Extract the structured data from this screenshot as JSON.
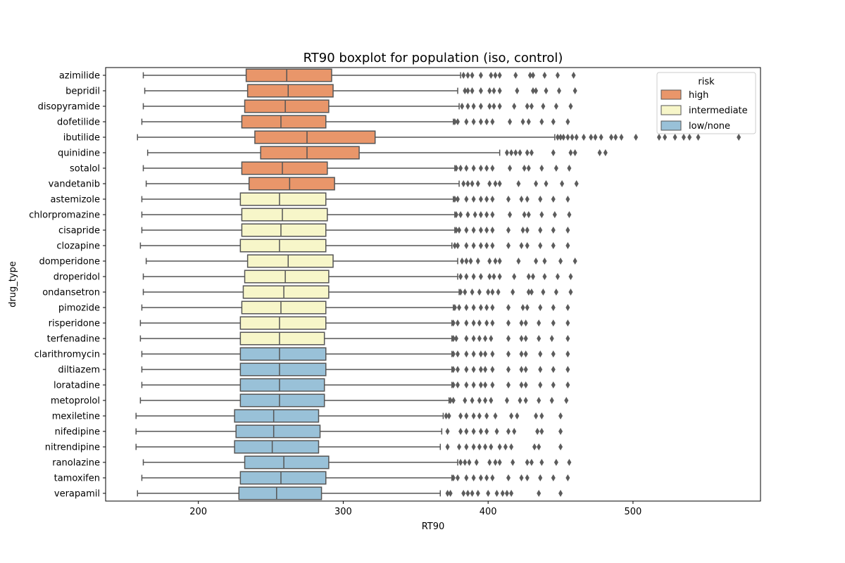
{
  "chart_data": {
    "type": "boxplot",
    "orientation": "horizontal",
    "title": "RT90 boxplot for population (iso, control)",
    "xlabel": "RT90",
    "ylabel": "drug_type",
    "xlim": [
      136,
      588
    ],
    "xticks": [
      200,
      300,
      400,
      500
    ],
    "grid": false,
    "legend": {
      "title": "risk",
      "placement": "top-right",
      "items": [
        {
          "label": "high",
          "color": "#e9966a"
        },
        {
          "label": "intermediate",
          "color": "#f7f6c9"
        },
        {
          "label": "low/none",
          "color": "#99c1d8"
        }
      ]
    },
    "box_edge_color": "#555555",
    "flier_color": "#5c5c5c",
    "boxes": [
      {
        "category": "azimilide",
        "risk": "high",
        "whisker_low": 162,
        "q1": 233,
        "median": 261,
        "q3": 292,
        "whisker_high": 381,
        "outliers": [
          383,
          386,
          389,
          395,
          402,
          405,
          408,
          419,
          429,
          431,
          439,
          448,
          459
        ]
      },
      {
        "category": "bepridil",
        "risk": "high",
        "whisker_low": 163,
        "q1": 234,
        "median": 262,
        "q3": 293,
        "whisker_high": 379,
        "outliers": [
          384,
          386,
          389,
          395,
          401,
          404,
          408,
          420,
          431,
          433,
          440,
          449,
          460
        ]
      },
      {
        "category": "disopyramide",
        "risk": "high",
        "whisker_low": 162,
        "q1": 232,
        "median": 260,
        "q3": 290,
        "whisker_high": 380,
        "outliers": [
          382,
          386,
          390,
          395,
          401,
          404,
          408,
          418,
          427,
          430,
          438,
          447,
          457
        ]
      },
      {
        "category": "dofetilide",
        "risk": "high",
        "whisker_low": 161,
        "q1": 230,
        "median": 257,
        "q3": 288,
        "whisker_high": 376,
        "outliers": [
          377,
          379,
          385,
          390,
          395,
          399,
          403,
          415,
          424,
          428,
          437,
          445,
          455
        ]
      },
      {
        "category": "ibutilide",
        "risk": "high",
        "whisker_low": 158,
        "q1": 239,
        "median": 275,
        "q3": 322,
        "whisker_high": 446,
        "outliers": [
          448,
          450,
          452,
          455,
          458,
          461,
          466,
          471,
          474,
          478,
          485,
          488,
          492,
          502,
          518,
          522,
          529,
          535,
          539,
          545,
          573
        ]
      },
      {
        "category": "quinidine",
        "risk": "high",
        "whisker_low": 165,
        "q1": 243,
        "median": 275,
        "q3": 311,
        "whisker_high": 408,
        "outliers": [
          413,
          416,
          419,
          422,
          427,
          430,
          445,
          457,
          460,
          477,
          481
        ]
      },
      {
        "category": "sotalol",
        "risk": "high",
        "whisker_low": 162,
        "q1": 230,
        "median": 258,
        "q3": 289,
        "whisker_high": 377,
        "outliers": [
          378,
          381,
          385,
          390,
          395,
          399,
          403,
          415,
          425,
          428,
          437,
          447,
          456
        ]
      },
      {
        "category": "vandetanib",
        "risk": "high",
        "whisker_low": 164,
        "q1": 235,
        "median": 263,
        "q3": 294,
        "whisker_high": 380,
        "outliers": [
          383,
          386,
          389,
          393,
          401,
          405,
          408,
          421,
          433,
          440,
          451,
          461
        ]
      },
      {
        "category": "astemizole",
        "risk": "intermediate",
        "whisker_low": 161,
        "q1": 229,
        "median": 256,
        "q3": 288,
        "whisker_high": 376,
        "outliers": [
          377,
          379,
          385,
          390,
          395,
          399,
          403,
          414,
          423,
          427,
          436,
          445,
          455
        ]
      },
      {
        "category": "chlorpromazine",
        "risk": "intermediate",
        "whisker_low": 161,
        "q1": 230,
        "median": 258,
        "q3": 289,
        "whisker_high": 377,
        "outliers": [
          378,
          381,
          386,
          391,
          395,
          399,
          403,
          415,
          425,
          428,
          437,
          446,
          456
        ]
      },
      {
        "category": "cisapride",
        "risk": "intermediate",
        "whisker_low": 161,
        "q1": 230,
        "median": 257,
        "q3": 288,
        "whisker_high": 377,
        "outliers": [
          378,
          380,
          385,
          390,
          395,
          399,
          403,
          414,
          424,
          427,
          436,
          445,
          455
        ]
      },
      {
        "category": "clozapine",
        "risk": "intermediate",
        "whisker_low": 160,
        "q1": 229,
        "median": 256,
        "q3": 288,
        "whisker_high": 375,
        "outliers": [
          377,
          379,
          385,
          390,
          395,
          399,
          403,
          414,
          423,
          427,
          436,
          445,
          455
        ]
      },
      {
        "category": "domperidone",
        "risk": "intermediate",
        "whisker_low": 164,
        "q1": 234,
        "median": 262,
        "q3": 293,
        "whisker_high": 379,
        "outliers": [
          382,
          385,
          388,
          393,
          401,
          405,
          408,
          421,
          433,
          439,
          450,
          460
        ]
      },
      {
        "category": "droperidol",
        "risk": "intermediate",
        "whisker_low": 162,
        "q1": 232,
        "median": 260,
        "q3": 290,
        "whisker_high": 379,
        "outliers": [
          381,
          385,
          390,
          395,
          401,
          404,
          408,
          418,
          428,
          431,
          439,
          448,
          457
        ]
      },
      {
        "category": "ondansetron",
        "risk": "intermediate",
        "whisker_low": 162,
        "q1": 231,
        "median": 259,
        "q3": 290,
        "whisker_high": 380,
        "outliers": [
          381,
          384,
          389,
          394,
          400,
          403,
          407,
          417,
          428,
          430,
          438,
          447,
          457
        ]
      },
      {
        "category": "pimozide",
        "risk": "intermediate",
        "whisker_low": 161,
        "q1": 230,
        "median": 257,
        "q3": 288,
        "whisker_high": 376,
        "outliers": [
          377,
          380,
          385,
          390,
          395,
          399,
          403,
          414,
          424,
          427,
          436,
          445,
          455
        ]
      },
      {
        "category": "risperidone",
        "risk": "intermediate",
        "whisker_low": 160,
        "q1": 229,
        "median": 256,
        "q3": 288,
        "whisker_high": 375,
        "outliers": [
          376,
          379,
          385,
          390,
          394,
          399,
          403,
          414,
          423,
          426,
          435,
          445,
          455
        ]
      },
      {
        "category": "terfenadine",
        "risk": "intermediate",
        "whisker_low": 160,
        "q1": 229,
        "median": 256,
        "q3": 287,
        "whisker_high": 375,
        "outliers": [
          376,
          378,
          385,
          390,
          394,
          398,
          402,
          414,
          423,
          426,
          435,
          444,
          455
        ]
      },
      {
        "category": "clarithromycin",
        "risk": "low/none",
        "whisker_low": 161,
        "q1": 229,
        "median": 256,
        "q3": 288,
        "whisker_high": 375,
        "outliers": [
          376,
          379,
          385,
          390,
          395,
          398,
          403,
          414,
          423,
          426,
          436,
          445,
          455
        ]
      },
      {
        "category": "diltiazem",
        "risk": "low/none",
        "whisker_low": 161,
        "q1": 229,
        "median": 256,
        "q3": 288,
        "whisker_high": 375,
        "outliers": [
          376,
          379,
          385,
          390,
          395,
          398,
          403,
          414,
          423,
          426,
          436,
          445,
          455
        ]
      },
      {
        "category": "loratadine",
        "risk": "low/none",
        "whisker_low": 161,
        "q1": 229,
        "median": 256,
        "q3": 287,
        "whisker_high": 375,
        "outliers": [
          376,
          379,
          385,
          390,
          395,
          398,
          403,
          414,
          423,
          426,
          436,
          445,
          455
        ]
      },
      {
        "category": "metoprolol",
        "risk": "low/none",
        "whisker_low": 160,
        "q1": 229,
        "median": 256,
        "q3": 287,
        "whisker_high": 373,
        "outliers": [
          374,
          376,
          384,
          389,
          394,
          398,
          402,
          413,
          422,
          426,
          435,
          444,
          454
        ]
      },
      {
        "category": "mexiletine",
        "risk": "low/none",
        "whisker_low": 157,
        "q1": 225,
        "median": 252,
        "q3": 283,
        "whisker_high": 369,
        "outliers": [
          371,
          373,
          381,
          385,
          390,
          394,
          399,
          405,
          416,
          420,
          433,
          437,
          450
        ]
      },
      {
        "category": "nifedipine",
        "risk": "low/none",
        "whisker_low": 157,
        "q1": 226,
        "median": 252,
        "q3": 284,
        "whisker_high": 368,
        "outliers": [
          372,
          381,
          385,
          390,
          395,
          399,
          406,
          414,
          418,
          434,
          437,
          450
        ]
      },
      {
        "category": "nitrendipine",
        "risk": "low/none",
        "whisker_low": 157,
        "q1": 225,
        "median": 251,
        "q3": 283,
        "whisker_high": 367,
        "outliers": [
          372,
          380,
          385,
          390,
          394,
          398,
          402,
          408,
          412,
          416,
          432,
          435,
          450
        ]
      },
      {
        "category": "ranolazine",
        "risk": "low/none",
        "whisker_low": 162,
        "q1": 232,
        "median": 259,
        "q3": 290,
        "whisker_high": 379,
        "outliers": [
          381,
          384,
          387,
          392,
          401,
          405,
          408,
          417,
          427,
          430,
          437,
          447,
          456
        ]
      },
      {
        "category": "tamoxifen",
        "risk": "low/none",
        "whisker_low": 161,
        "q1": 229,
        "median": 257,
        "q3": 288,
        "whisker_high": 375,
        "outliers": [
          376,
          379,
          385,
          390,
          395,
          399,
          403,
          414,
          423,
          427,
          436,
          445,
          455
        ]
      },
      {
        "category": "verapamil",
        "risk": "low/none",
        "whisker_low": 158,
        "q1": 228,
        "median": 254,
        "q3": 285,
        "whisker_high": 367,
        "outliers": [
          372,
          374,
          383,
          386,
          389,
          393,
          400,
          406,
          410,
          413,
          416,
          435,
          450
        ]
      }
    ]
  }
}
